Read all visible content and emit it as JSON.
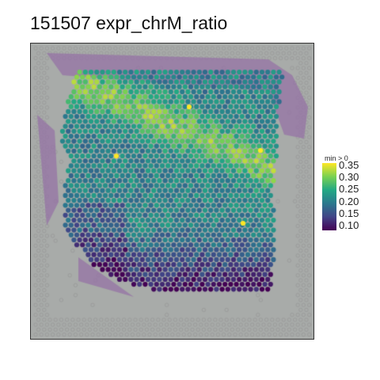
{
  "title": "151507 expr_chrM_ratio",
  "legend": {
    "title": "min > 0",
    "ticks": [
      "0.35",
      "0.30",
      "0.25",
      "0.20",
      "0.15",
      "0.10"
    ],
    "colormap": "viridis",
    "range": [
      0.08,
      0.36
    ]
  },
  "colors": {
    "background_tissue": "#a8aba9",
    "tissue_purple": "#9d7da8",
    "viridis_low": "#440154",
    "viridis_high": "#fde725"
  }
}
